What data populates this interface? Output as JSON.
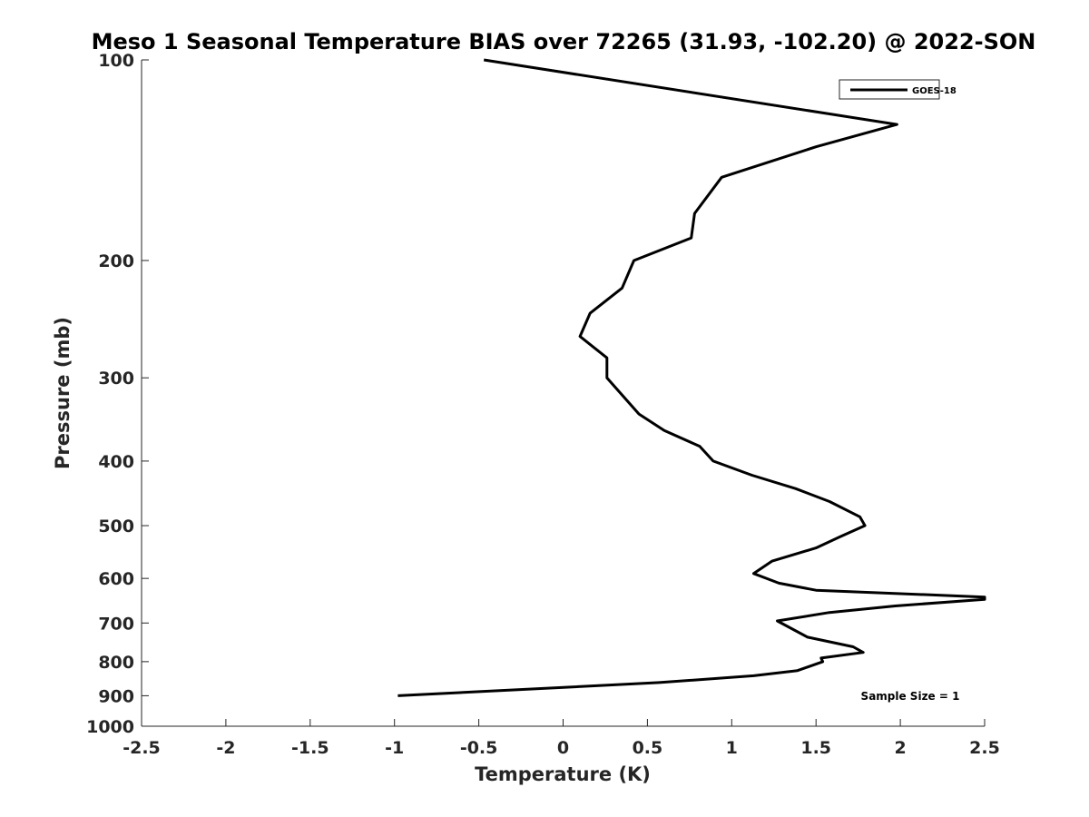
{
  "chart_data": {
    "type": "line",
    "title": "Meso 1 Seasonal Temperature BIAS over 72265 (31.93, -102.20) @ 2022-SON",
    "xlabel": "Temperature (K)",
    "ylabel": "Pressure (mb)",
    "xlim": [
      -2.5,
      2.5
    ],
    "ylim": [
      100,
      1000
    ],
    "y_scale": "log",
    "y_reversed": true,
    "x_ticks": [
      -2.5,
      -2,
      -1.5,
      -1,
      -0.5,
      0,
      0.5,
      1,
      1.5,
      2,
      2.5
    ],
    "x_tick_labels": [
      "-2.5",
      "-2",
      "-1.5",
      "-1",
      "-0.5",
      "0",
      "0.5",
      "1",
      "1.5",
      "2",
      "2.5"
    ],
    "y_ticks": [
      100,
      200,
      300,
      400,
      500,
      600,
      700,
      800,
      900,
      1000
    ],
    "y_tick_labels": [
      "100",
      "200",
      "300",
      "400",
      "500",
      "600",
      "700",
      "800",
      "900",
      "1000"
    ],
    "grid": false,
    "legend_position": "top-right",
    "series": [
      {
        "name": "GOES-18",
        "color": "#000000",
        "points": [
          {
            "x": -0.47,
            "y": 100
          },
          {
            "x": 1.98,
            "y": 125
          },
          {
            "x": 1.5,
            "y": 135
          },
          {
            "x": 0.94,
            "y": 150
          },
          {
            "x": 0.78,
            "y": 170
          },
          {
            "x": 0.76,
            "y": 185
          },
          {
            "x": 0.42,
            "y": 200
          },
          {
            "x": 0.35,
            "y": 220
          },
          {
            "x": 0.16,
            "y": 240
          },
          {
            "x": 0.1,
            "y": 260
          },
          {
            "x": 0.26,
            "y": 280
          },
          {
            "x": 0.26,
            "y": 300
          },
          {
            "x": 0.45,
            "y": 340
          },
          {
            "x": 0.6,
            "y": 360
          },
          {
            "x": 0.81,
            "y": 380
          },
          {
            "x": 0.89,
            "y": 400
          },
          {
            "x": 1.12,
            "y": 420
          },
          {
            "x": 1.38,
            "y": 440
          },
          {
            "x": 1.58,
            "y": 460
          },
          {
            "x": 1.76,
            "y": 485
          },
          {
            "x": 1.79,
            "y": 500
          },
          {
            "x": 1.64,
            "y": 520
          },
          {
            "x": 1.5,
            "y": 540
          },
          {
            "x": 1.24,
            "y": 565
          },
          {
            "x": 1.13,
            "y": 590
          },
          {
            "x": 1.28,
            "y": 610
          },
          {
            "x": 1.5,
            "y": 625
          },
          {
            "x": 2.5,
            "y": 640
          },
          {
            "x": 2.5,
            "y": 645
          },
          {
            "x": 1.97,
            "y": 660
          },
          {
            "x": 1.58,
            "y": 675
          },
          {
            "x": 1.27,
            "y": 695
          },
          {
            "x": 1.45,
            "y": 735
          },
          {
            "x": 1.72,
            "y": 760
          },
          {
            "x": 1.78,
            "y": 775
          },
          {
            "x": 1.53,
            "y": 790
          },
          {
            "x": 1.54,
            "y": 800
          },
          {
            "x": 1.39,
            "y": 825
          },
          {
            "x": 1.13,
            "y": 840
          },
          {
            "x": 0.57,
            "y": 860
          },
          {
            "x": -0.98,
            "y": 900
          }
        ]
      }
    ],
    "annotations": [
      {
        "text": "Sample Size = 1",
        "position": "bottom-right"
      }
    ]
  }
}
